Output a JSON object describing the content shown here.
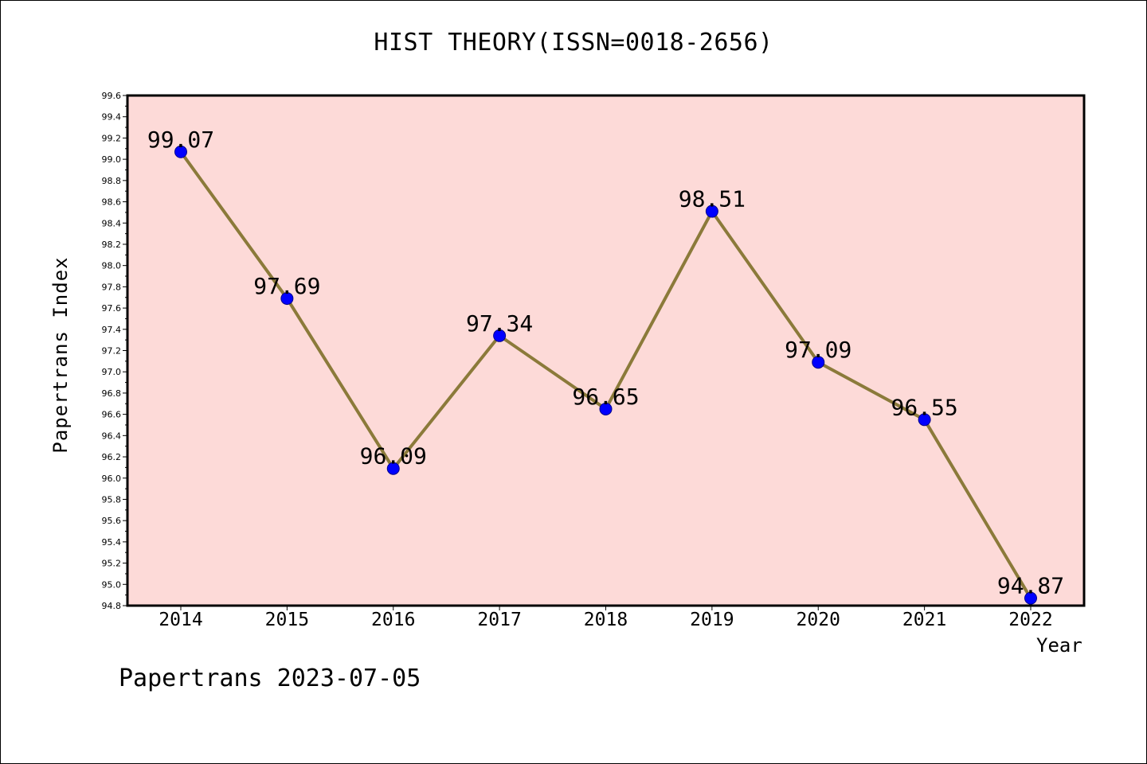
{
  "chart_data": {
    "type": "line",
    "title": "HIST THEORY(ISSN=0018-2656)",
    "xlabel": "Year",
    "ylabel": "Papertrans Index",
    "x": [
      "2014",
      "2015",
      "2016",
      "2017",
      "2018",
      "2019",
      "2020",
      "2021",
      "2022"
    ],
    "series": [
      {
        "values": [
          99.07,
          97.69,
          96.09,
          97.34,
          96.65,
          98.51,
          97.09,
          96.55,
          94.87
        ]
      }
    ],
    "data_labels": [
      "99.07",
      "97.69",
      "96.09",
      "97.34",
      "96.65",
      "98.51",
      "97.09",
      "96.55",
      "94.87"
    ],
    "ylim": [
      94.8,
      99.6
    ],
    "ytick_step": 0.2,
    "grid": false,
    "legend": "none",
    "colors": {
      "plot_background": "#fddad8",
      "line": "#8b7a3a",
      "marker": "#0000ff",
      "axis": "#000000"
    },
    "footer": "Papertrans 2023-07-05"
  }
}
